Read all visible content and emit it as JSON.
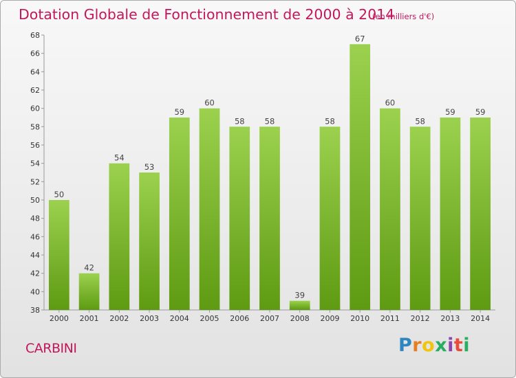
{
  "header": {
    "title": "Dotation Globale de Fonctionnement de 2000 à 2014",
    "unit": "(en milliers d'€)"
  },
  "footer": {
    "commune": "CARBINI",
    "logo": "Proxiti"
  },
  "colors": {
    "accent": "#c2185b",
    "bar_top": "#9bd14e",
    "bar_bottom": "#5e9a12"
  },
  "chart_data": {
    "type": "bar",
    "title": "Dotation Globale de Fonctionnement de 2000 à 2014",
    "subtitle": "(en milliers d'€)",
    "xlabel": "",
    "ylabel": "",
    "categories": [
      "2000",
      "2001",
      "2002",
      "2003",
      "2004",
      "2005",
      "2006",
      "2007",
      "2008",
      "2009",
      "2010",
      "2011",
      "2012",
      "2013",
      "2014"
    ],
    "values": [
      50,
      42,
      54,
      53,
      59,
      60,
      58,
      58,
      39,
      58,
      67,
      60,
      58,
      59,
      59
    ],
    "ylim": [
      38,
      68
    ],
    "yticks": [
      38,
      40,
      42,
      44,
      46,
      48,
      50,
      52,
      54,
      56,
      58,
      60,
      62,
      64,
      66,
      68
    ],
    "grid": false,
    "legend": "none"
  }
}
